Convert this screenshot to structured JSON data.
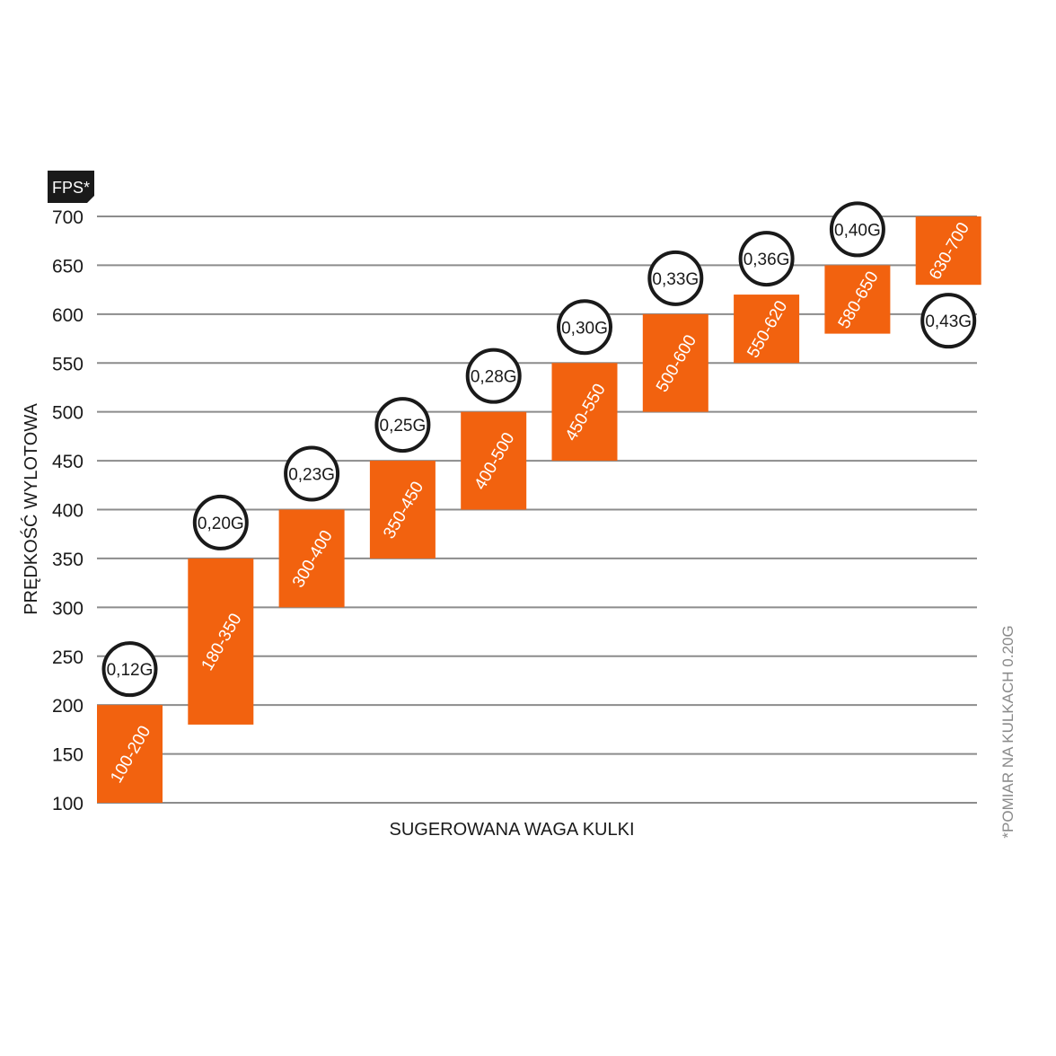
{
  "colors": {
    "bar": "#f2620f",
    "grid": "#8c8c8c",
    "text": "#1a1a1a",
    "badge_bg": "#1a1a1a",
    "footnote": "#8a8a8a"
  },
  "chart_data": {
    "type": "bar",
    "subtype": "floating-range",
    "unit_badge": "FPS*",
    "ylabel": "PRĘDKOŚĆ WYLOTOWA",
    "xlabel": "SUGEROWANA WAGA KULKI",
    "footnote": "*POMIAR NA KULKACH 0.20G",
    "ylim": [
      100,
      700
    ],
    "y_ticks": [
      100,
      150,
      200,
      250,
      300,
      350,
      400,
      450,
      500,
      550,
      600,
      650,
      700
    ],
    "grid": true,
    "categories": [
      "0,12G",
      "0,20G",
      "0,23G",
      "0,25G",
      "0,28G",
      "0,30G",
      "0,33G",
      "0,36G",
      "0,40G",
      "0,43G"
    ],
    "ranges": [
      {
        "weight": "0,12G",
        "low": 100,
        "high": 200,
        "label": "100-200"
      },
      {
        "weight": "0,20G",
        "low": 180,
        "high": 350,
        "label": "180-350"
      },
      {
        "weight": "0,23G",
        "low": 300,
        "high": 400,
        "label": "300-400"
      },
      {
        "weight": "0,25G",
        "low": 350,
        "high": 450,
        "label": "350-450"
      },
      {
        "weight": "0,28G",
        "low": 400,
        "high": 500,
        "label": "400-500"
      },
      {
        "weight": "0,30G",
        "low": 450,
        "high": 550,
        "label": "450-550"
      },
      {
        "weight": "0,33G",
        "low": 500,
        "high": 600,
        "label": "500-600"
      },
      {
        "weight": "0,36G",
        "low": 550,
        "high": 620,
        "label": "550-620"
      },
      {
        "weight": "0,40G",
        "low": 580,
        "high": 650,
        "label": "580-650"
      },
      {
        "weight": "0,43G",
        "low": 630,
        "high": 700,
        "label": "630-700"
      }
    ]
  }
}
